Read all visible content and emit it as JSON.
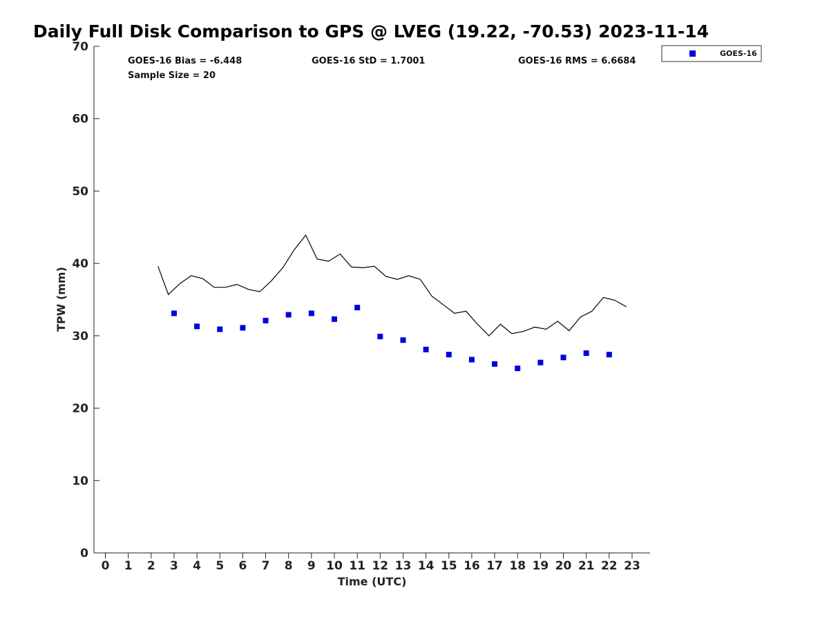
{
  "chart_data": {
    "type": "scatter",
    "title": "Daily Full Disk Comparison to GPS @ LVEG (19.22, -70.53) 2023-11-14",
    "xlabel": "Time (UTC)",
    "ylabel": "TPW (mm)",
    "xlim": [
      -0.5,
      23.8
    ],
    "ylim": [
      0,
      70
    ],
    "xticks": [
      0,
      1,
      2,
      3,
      4,
      5,
      6,
      7,
      8,
      9,
      10,
      11,
      12,
      13,
      14,
      15,
      16,
      17,
      18,
      19,
      20,
      21,
      22,
      23
    ],
    "yticks": [
      0,
      10,
      20,
      30,
      40,
      50,
      60,
      70
    ],
    "grid": false,
    "legend": {
      "position": "top-right",
      "entries": [
        "GOES-16"
      ]
    },
    "stats": {
      "bias": "GOES-16 Bias = -6.448",
      "std": "GOES-16 StD = 1.7001",
      "rms": "GOES-16 RMS = 6.6684",
      "sample": "Sample Size = 20"
    },
    "series": [
      {
        "name": "GOES-16",
        "kind": "scatter",
        "color": "#0000dd",
        "x": [
          3,
          4,
          5,
          6,
          7,
          8,
          9,
          10,
          11,
          12,
          13,
          14,
          15,
          16,
          17,
          18,
          19,
          20,
          21,
          22
        ],
        "y": [
          33.1,
          31.3,
          30.9,
          31.1,
          32.1,
          32.9,
          33.1,
          32.3,
          33.9,
          29.9,
          29.4,
          28.1,
          27.4,
          26.7,
          26.1,
          25.5,
          26.3,
          27.0,
          27.6,
          27.4
        ]
      },
      {
        "kind": "line",
        "color": "#000000",
        "x": [
          2.3,
          2.75,
          3.25,
          3.75,
          4.25,
          4.75,
          5.25,
          5.75,
          6.25,
          6.75,
          7.25,
          7.75,
          8.25,
          8.75,
          9.25,
          9.75,
          10.25,
          10.75,
          11.25,
          11.75,
          12.25,
          12.75,
          13.25,
          13.75,
          14.25,
          14.75,
          15.25,
          15.75,
          16.25,
          16.75,
          17.25,
          17.75,
          18.25,
          18.75,
          19.25,
          19.75,
          20.25,
          20.75,
          21.25,
          21.75,
          22.25,
          22.75
        ],
        "y": [
          39.6,
          35.7,
          37.2,
          38.3,
          37.9,
          36.7,
          36.7,
          37.1,
          36.4,
          36.1,
          37.6,
          39.4,
          41.9,
          43.9,
          40.6,
          40.3,
          41.3,
          39.5,
          39.4,
          39.6,
          38.2,
          37.8,
          38.3,
          37.8,
          35.5,
          34.3,
          33.1,
          33.4,
          31.6,
          30.0,
          31.6,
          30.3,
          30.6,
          31.2,
          30.9,
          32.0,
          30.7,
          32.6,
          33.4,
          35.3,
          34.9,
          34.0
        ]
      }
    ]
  }
}
